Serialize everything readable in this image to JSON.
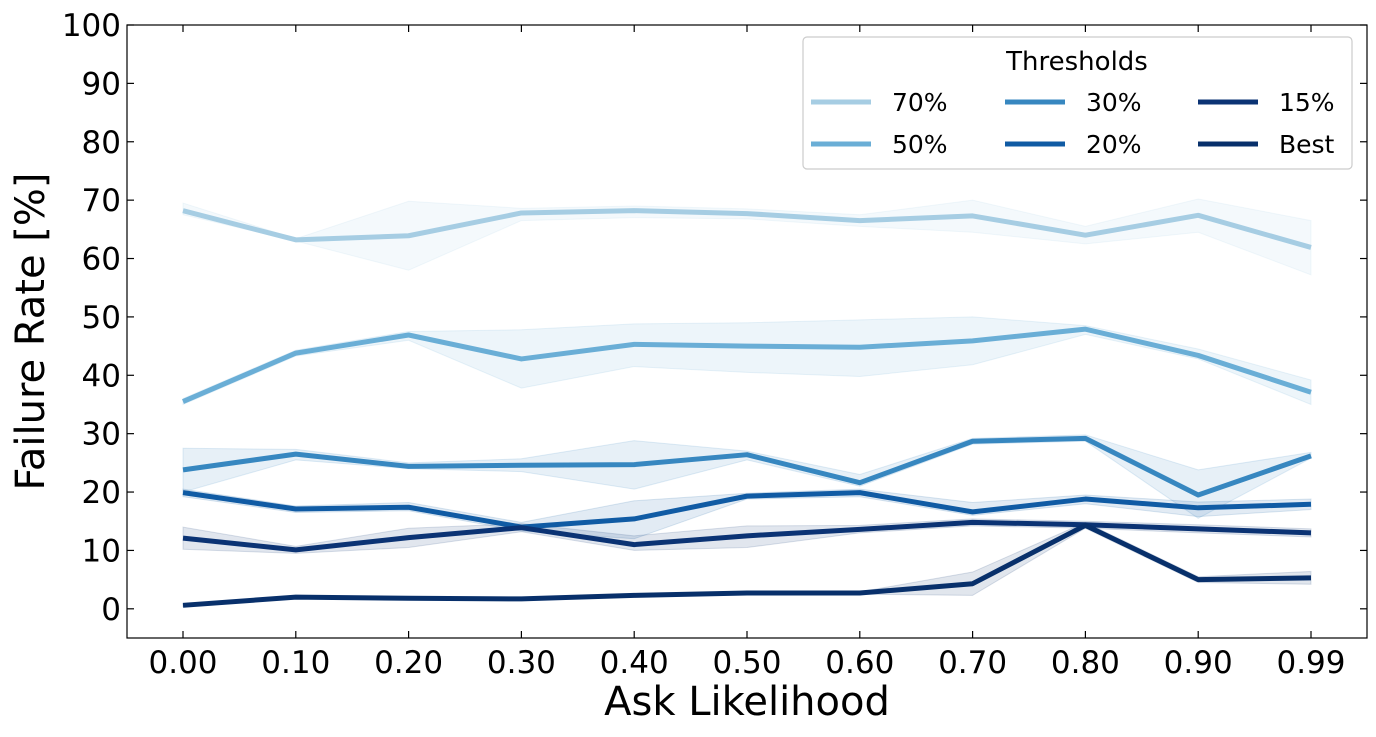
{
  "chart_data": {
    "type": "line",
    "xlabel": "Ask Likelihood",
    "ylabel": "Failure Rate [%]",
    "categories": [
      "0.00",
      "0.10",
      "0.20",
      "0.30",
      "0.40",
      "0.50",
      "0.60",
      "0.70",
      "0.80",
      "0.90",
      "0.99"
    ],
    "ylim": [
      -5,
      100
    ],
    "yticks": [
      0,
      10,
      20,
      30,
      40,
      50,
      60,
      70,
      80,
      90,
      100
    ],
    "grid": false,
    "legend": {
      "title": "Thresholds",
      "placement": "top-right",
      "columns": 3
    },
    "series": [
      {
        "name": "70%",
        "color": "#a6cde3",
        "values": [
          68.2,
          63.2,
          63.9,
          67.8,
          68.2,
          67.7,
          66.5,
          67.3,
          64.0,
          67.4,
          61.9
        ],
        "band_low": [
          67.5,
          63.0,
          58.0,
          66.5,
          67.0,
          66.8,
          65.5,
          64.5,
          62.5,
          64.5,
          57.2
        ],
        "band_high": [
          69.5,
          63.4,
          69.8,
          68.6,
          69.0,
          68.5,
          67.5,
          70.0,
          65.5,
          70.2,
          66.5
        ]
      },
      {
        "name": "50%",
        "color": "#6aaed6",
        "values": [
          35.5,
          43.8,
          46.9,
          42.8,
          45.3,
          45.0,
          44.8,
          45.9,
          47.9,
          43.4,
          37.1
        ],
        "band_low": [
          35.0,
          43.3,
          46.0,
          37.8,
          41.5,
          40.5,
          39.8,
          41.8,
          47.0,
          42.8,
          35.0
        ],
        "band_high": [
          36.0,
          44.3,
          47.5,
          47.8,
          48.8,
          49.0,
          49.5,
          50.0,
          48.5,
          44.5,
          39.2
        ]
      },
      {
        "name": "30%",
        "color": "#3787c0",
        "values": [
          23.8,
          26.5,
          24.4,
          24.6,
          24.7,
          26.4,
          21.6,
          28.7,
          29.2,
          19.5,
          26.2
        ],
        "band_low": [
          20.0,
          25.5,
          24.0,
          23.5,
          20.5,
          25.5,
          21.0,
          28.2,
          28.7,
          15.5,
          25.8
        ],
        "band_high": [
          27.5,
          27.3,
          25.0,
          25.7,
          28.8,
          27.0,
          23.0,
          29.2,
          29.8,
          23.8,
          26.8
        ]
      },
      {
        "name": "20%",
        "color": "#105ba4",
        "values": [
          19.9,
          17.1,
          17.4,
          14.0,
          15.4,
          19.3,
          19.9,
          16.6,
          18.8,
          17.3,
          17.9
        ],
        "band_low": [
          19.2,
          16.5,
          16.8,
          13.3,
          12.0,
          18.8,
          19.2,
          16.0,
          18.0,
          15.8,
          17.0
        ],
        "band_high": [
          20.5,
          17.6,
          18.2,
          14.8,
          18.5,
          19.8,
          20.5,
          18.2,
          19.5,
          18.3,
          18.8
        ]
      },
      {
        "name": "15%",
        "color": "#0b3374",
        "values": [
          12.1,
          10.1,
          12.2,
          13.9,
          11.0,
          12.5,
          13.6,
          14.8,
          14.4,
          13.7,
          13.0
        ],
        "band_low": [
          10.2,
          9.5,
          10.5,
          13.2,
          10.0,
          10.5,
          13.0,
          14.2,
          13.8,
          13.0,
          12.3
        ],
        "band_high": [
          14.0,
          10.7,
          13.8,
          14.6,
          12.5,
          14.2,
          14.3,
          15.4,
          15.0,
          14.4,
          13.7
        ]
      },
      {
        "name": "Best",
        "color": "#08306b",
        "values": [
          0.6,
          2.0,
          1.8,
          1.7,
          2.3,
          2.7,
          2.7,
          4.3,
          14.3,
          5.0,
          5.3
        ],
        "band_low": [
          0.4,
          1.8,
          1.6,
          1.5,
          2.1,
          2.5,
          2.5,
          2.3,
          13.8,
          4.5,
          4.2
        ],
        "band_high": [
          0.8,
          2.2,
          2.0,
          1.9,
          2.5,
          2.9,
          2.9,
          6.3,
          14.8,
          5.5,
          6.4
        ]
      }
    ]
  }
}
